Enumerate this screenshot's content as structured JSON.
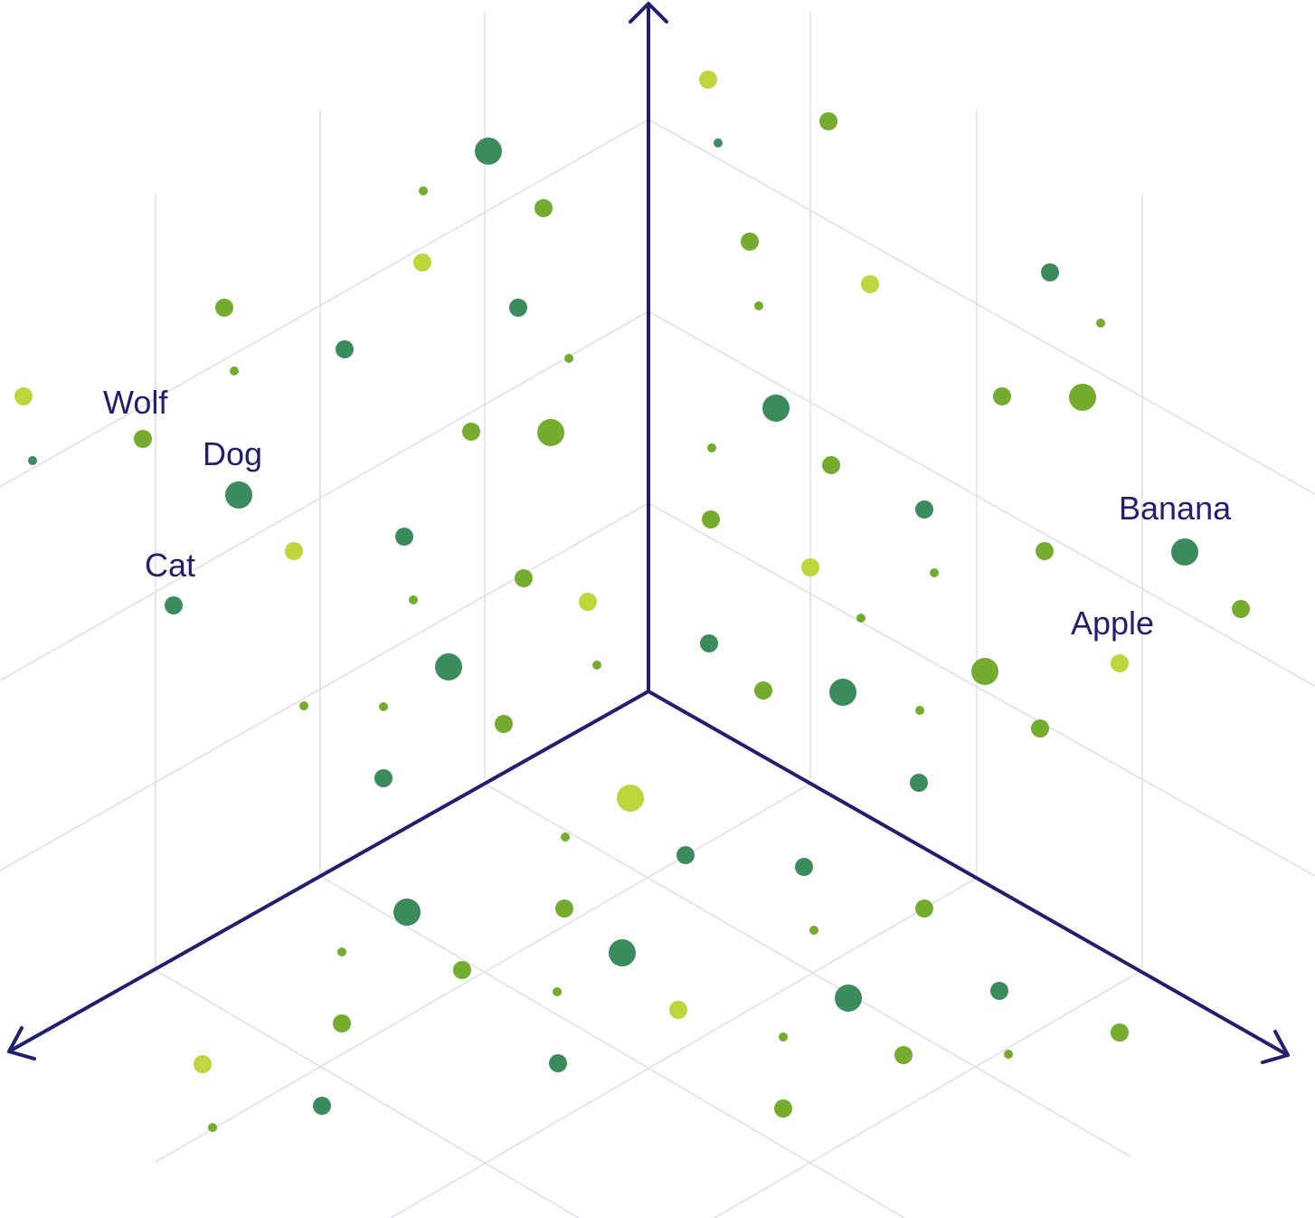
{
  "colors": {
    "axis": "#221f6e",
    "grid": "#e1e0ea",
    "label": "#221f6e",
    "dot_dark_green": "#3a8c5c",
    "dot_green": "#74ac2e",
    "dot_lime": "#bfd53c"
  },
  "labels": {
    "wolf": "Wolf",
    "dog": "Dog",
    "cat": "Cat",
    "banana": "Banana",
    "apple": "Apple"
  }
}
